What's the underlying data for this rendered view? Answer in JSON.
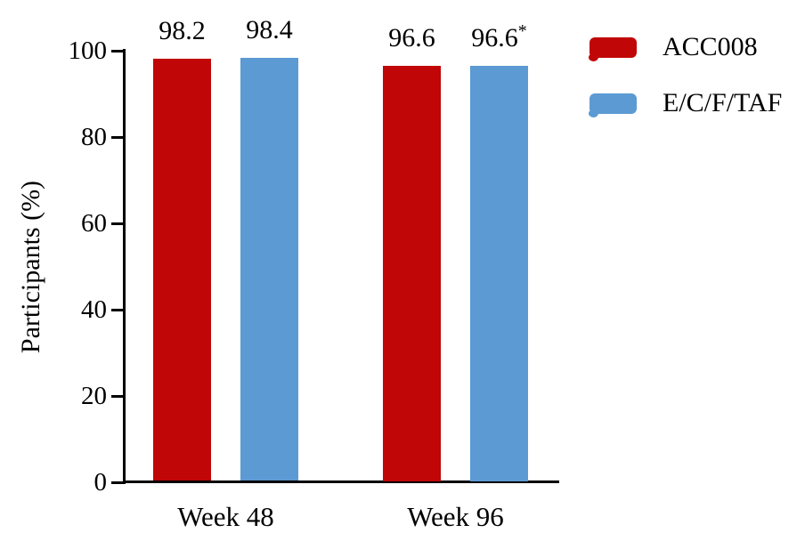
{
  "chart_data": {
    "type": "bar",
    "title": "",
    "categories": [
      "Week 48",
      "Week 96"
    ],
    "series": [
      {
        "name": "ACC008",
        "color": "#c00606",
        "values": [
          98.2,
          96.6
        ],
        "bar_labels": [
          "98.2",
          "96.6"
        ]
      },
      {
        "name": "E/C/F/TAF",
        "color": "#5b9ad3",
        "values": [
          98.4,
          96.6
        ],
        "bar_labels": [
          "98.4",
          "96.6*"
        ]
      }
    ],
    "xlabel": "",
    "ylabel": "Participants (%)",
    "yticks": [
      0,
      20,
      40,
      60,
      80,
      100
    ],
    "ylim": [
      0,
      100
    ],
    "legend_position": "top-right",
    "grid": false
  }
}
